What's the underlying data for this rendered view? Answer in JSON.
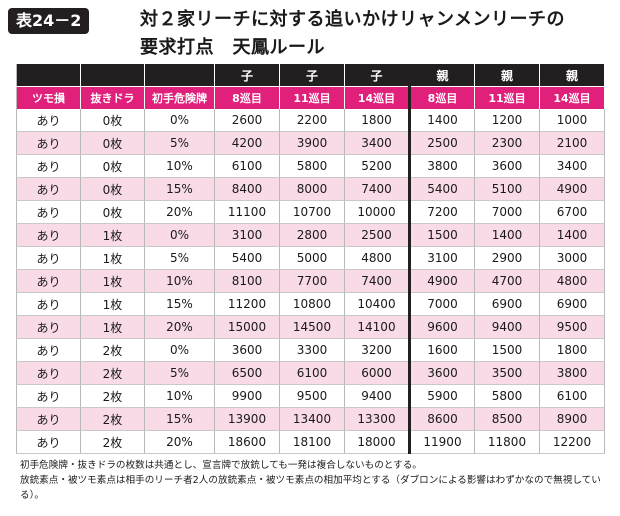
{
  "header": {
    "badge": "表24－2",
    "title_line1": "対２家リーチに対する追いかけリャンメンリーチの",
    "title_line2": "要求打点　天鳳ルール"
  },
  "table": {
    "group_headers": [
      "",
      "",
      "",
      "子",
      "子",
      "子",
      "親",
      "親",
      "親"
    ],
    "column_headers": [
      "ツモ損",
      "抜きドラ",
      "初手危険牌",
      "8巡目",
      "11巡目",
      "14巡目",
      "8巡目",
      "11巡目",
      "14巡目"
    ],
    "rows": [
      [
        "あり",
        "0枚",
        "0%",
        "2600",
        "2200",
        "1800",
        "1400",
        "1200",
        "1000"
      ],
      [
        "あり",
        "0枚",
        "5%",
        "4200",
        "3900",
        "3400",
        "2500",
        "2300",
        "2100"
      ],
      [
        "あり",
        "0枚",
        "10%",
        "6100",
        "5800",
        "5200",
        "3800",
        "3600",
        "3400"
      ],
      [
        "あり",
        "0枚",
        "15%",
        "8400",
        "8000",
        "7400",
        "5400",
        "5100",
        "4900"
      ],
      [
        "あり",
        "0枚",
        "20%",
        "11100",
        "10700",
        "10000",
        "7200",
        "7000",
        "6700"
      ],
      [
        "あり",
        "1枚",
        "0%",
        "3100",
        "2800",
        "2500",
        "1500",
        "1400",
        "1400"
      ],
      [
        "あり",
        "1枚",
        "5%",
        "5400",
        "5000",
        "4800",
        "3100",
        "2900",
        "3000"
      ],
      [
        "あり",
        "1枚",
        "10%",
        "8100",
        "7700",
        "7400",
        "4900",
        "4700",
        "4800"
      ],
      [
        "あり",
        "1枚",
        "15%",
        "11200",
        "10800",
        "10400",
        "7000",
        "6900",
        "6900"
      ],
      [
        "あり",
        "1枚",
        "20%",
        "15000",
        "14500",
        "14100",
        "9600",
        "9400",
        "9500"
      ],
      [
        "あり",
        "2枚",
        "0%",
        "3600",
        "3300",
        "3200",
        "1600",
        "1500",
        "1800"
      ],
      [
        "あり",
        "2枚",
        "5%",
        "6500",
        "6100",
        "6000",
        "3600",
        "3500",
        "3800"
      ],
      [
        "あり",
        "2枚",
        "10%",
        "9900",
        "9500",
        "9400",
        "5900",
        "5800",
        "6100"
      ],
      [
        "あり",
        "2枚",
        "15%",
        "13900",
        "13400",
        "13300",
        "8600",
        "8500",
        "8900"
      ],
      [
        "あり",
        "2枚",
        "20%",
        "18600",
        "18100",
        "18000",
        "11900",
        "11800",
        "12200"
      ]
    ]
  },
  "notes": [
    "初手危険牌・抜きドラの枚数は共通とし、宣言牌で放銃しても一発は複合しないものとする。",
    "放銃素点・被ツモ素点は相手のリーチ者2人の放銃素点・被ツモ素点の相加平均とする（ダブロンによる影響はわずかなので無視している）。"
  ]
}
